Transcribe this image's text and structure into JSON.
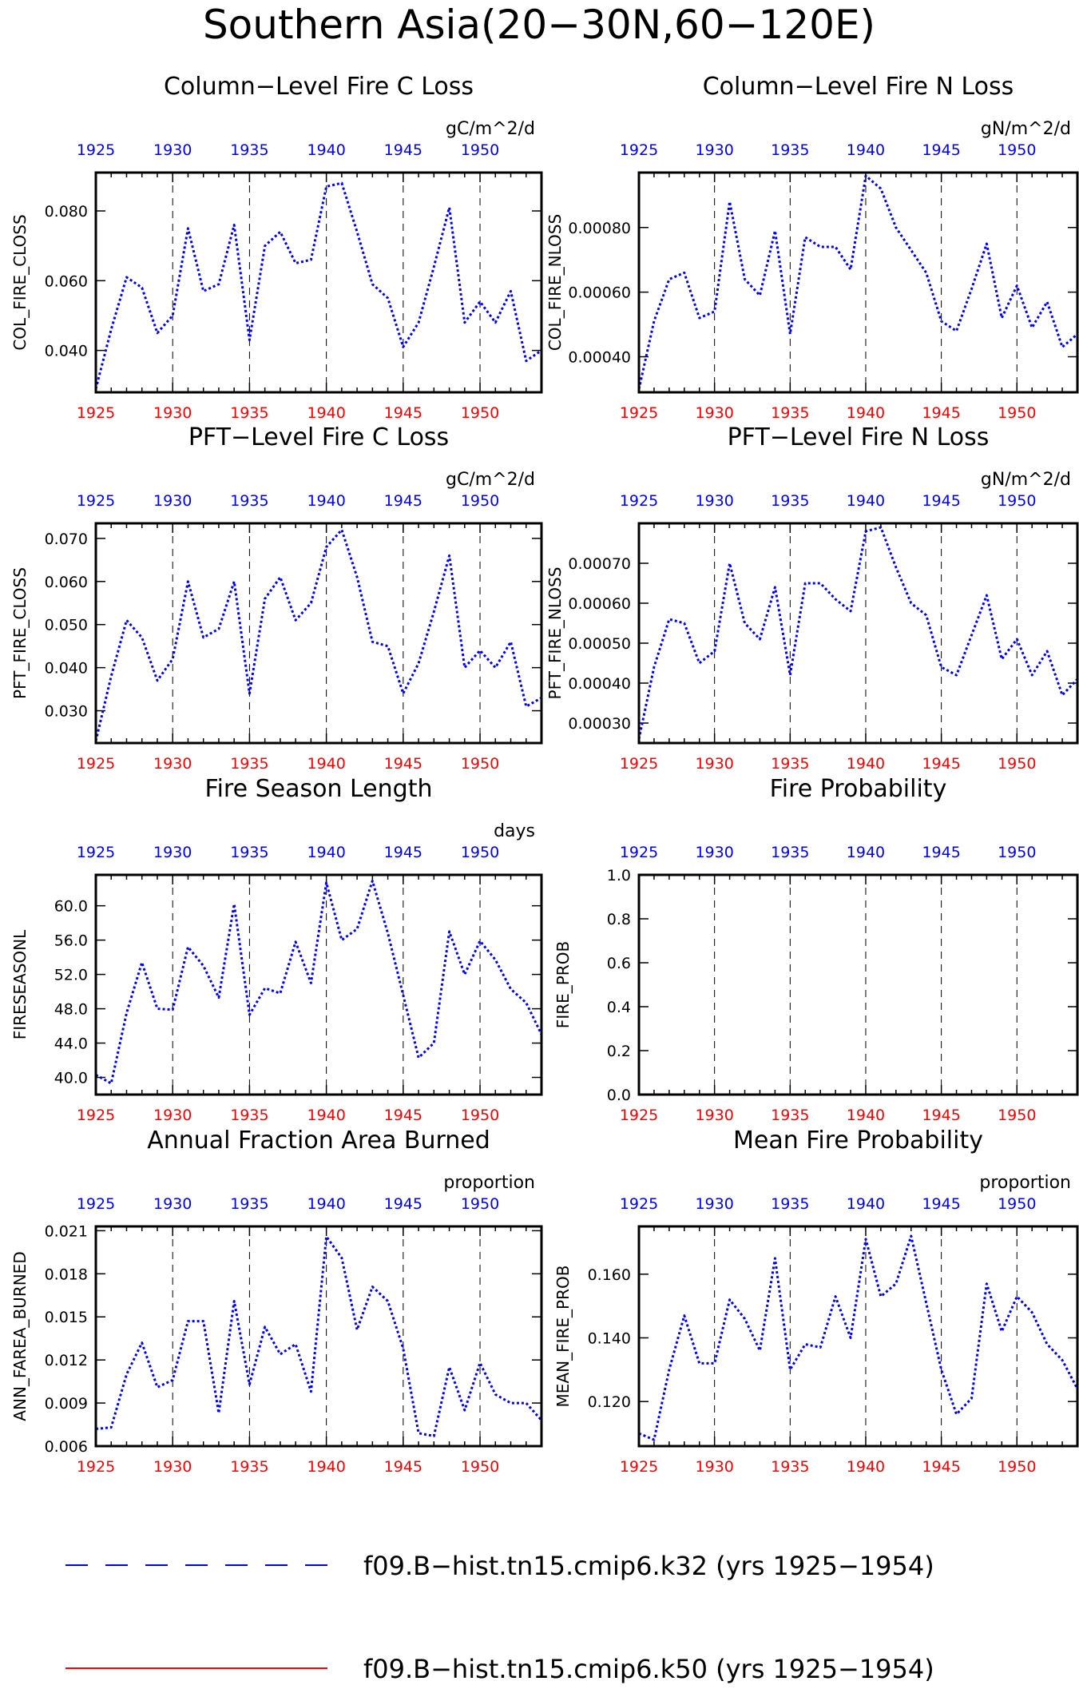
{
  "figure": {
    "title": "Southern Asia(20−30N,60−120E)",
    "legend": [
      {
        "label": "f09.B−hist.tn15.cmip6.k32 (yrs 1925−1954)",
        "color": "#0000ff",
        "style": "dashed"
      },
      {
        "label": "f09.B−hist.tn15.cmip6.k50 (yrs 1925−1954)",
        "color": "#ff0000",
        "style": "solid"
      }
    ],
    "colors": {
      "series": "#0000ff",
      "top_ticks": "#0000ff",
      "bottom_ticks": "#ff0000",
      "axes": "#000000"
    }
  },
  "chart_data": [
    {
      "type": "line",
      "title": "Column−Level Fire C Loss",
      "units": "gC/m^2/d",
      "ylabel": "COL_FIRE_CLOSS",
      "xlim": [
        1925,
        1954
      ],
      "ylim": [
        0.028,
        0.091
      ],
      "xticks": [
        "1925",
        "1930",
        "1935",
        "1940",
        "1945",
        "1950"
      ],
      "yticks": [
        "0.040",
        "0.060",
        "0.080"
      ],
      "x": [
        1925,
        1926,
        1927,
        1928,
        1929,
        1930,
        1931,
        1932,
        1933,
        1934,
        1935,
        1936,
        1937,
        1938,
        1939,
        1940,
        1941,
        1942,
        1943,
        1944,
        1945,
        1946,
        1947,
        1948,
        1949,
        1950,
        1951,
        1952,
        1953,
        1954
      ],
      "series": [
        {
          "values": [
            0.029,
            0.046,
            0.061,
            0.058,
            0.045,
            0.05,
            0.075,
            0.057,
            0.059,
            0.076,
            0.043,
            0.07,
            0.074,
            0.065,
            0.066,
            0.087,
            0.088,
            0.074,
            0.059,
            0.055,
            0.041,
            0.048,
            0.064,
            0.081,
            0.048,
            0.054,
            0.048,
            0.057,
            0.037,
            0.04
          ]
        }
      ]
    },
    {
      "type": "line",
      "title": "Column−Level Fire N Loss",
      "units": "gN/m^2/d",
      "ylabel": "COL_FIRE_NLOSS",
      "xlim": [
        1925,
        1954
      ],
      "ylim": [
        0.00029,
        0.00097
      ],
      "xticks": [
        "1925",
        "1930",
        "1935",
        "1940",
        "1945",
        "1950"
      ],
      "yticks": [
        "0.00040",
        "0.00060",
        "0.00080"
      ],
      "x": [
        1925,
        1926,
        1927,
        1928,
        1929,
        1930,
        1931,
        1932,
        1933,
        1934,
        1935,
        1936,
        1937,
        1938,
        1939,
        1940,
        1941,
        1942,
        1943,
        1944,
        1945,
        1946,
        1947,
        1948,
        1949,
        1950,
        1951,
        1952,
        1953,
        1954
      ],
      "series": [
        {
          "values": [
            0.0003,
            0.00051,
            0.00064,
            0.00066,
            0.00052,
            0.00054,
            0.00088,
            0.00064,
            0.00059,
            0.00079,
            0.00047,
            0.00077,
            0.00074,
            0.00074,
            0.00067,
            0.00096,
            0.00092,
            0.0008,
            0.00073,
            0.00066,
            0.00051,
            0.00048,
            0.00061,
            0.00075,
            0.00052,
            0.00062,
            0.00049,
            0.00057,
            0.00043,
            0.00047
          ]
        }
      ]
    },
    {
      "type": "line",
      "title": "PFT−Level Fire C Loss",
      "units": "gC/m^2/d",
      "ylabel": "PFT_FIRE_CLOSS",
      "xlim": [
        1925,
        1954
      ],
      "ylim": [
        0.0225,
        0.0735
      ],
      "xticks": [
        "1925",
        "1930",
        "1935",
        "1940",
        "1945",
        "1950"
      ],
      "yticks": [
        "0.030",
        "0.040",
        "0.050",
        "0.060",
        "0.070"
      ],
      "x": [
        1925,
        1926,
        1927,
        1928,
        1929,
        1930,
        1931,
        1932,
        1933,
        1934,
        1935,
        1936,
        1937,
        1938,
        1939,
        1940,
        1941,
        1942,
        1943,
        1944,
        1945,
        1946,
        1947,
        1948,
        1949,
        1950,
        1951,
        1952,
        1953,
        1954
      ],
      "series": [
        {
          "values": [
            0.023,
            0.038,
            0.051,
            0.047,
            0.037,
            0.042,
            0.06,
            0.047,
            0.049,
            0.06,
            0.034,
            0.056,
            0.061,
            0.051,
            0.055,
            0.068,
            0.072,
            0.061,
            0.046,
            0.045,
            0.034,
            0.041,
            0.053,
            0.066,
            0.04,
            0.044,
            0.04,
            0.046,
            0.031,
            0.033
          ]
        }
      ]
    },
    {
      "type": "line",
      "title": "PFT−Level Fire N Loss",
      "units": "gN/m^2/d",
      "ylabel": "PFT_FIRE_NLOSS",
      "xlim": [
        1925,
        1954
      ],
      "ylim": [
        0.00025,
        0.0008
      ],
      "xticks": [
        "1925",
        "1930",
        "1935",
        "1940",
        "1945",
        "1950"
      ],
      "yticks": [
        "0.00030",
        "0.00040",
        "0.00050",
        "0.00060",
        "0.00070"
      ],
      "x": [
        1925,
        1926,
        1927,
        1928,
        1929,
        1930,
        1931,
        1932,
        1933,
        1934,
        1935,
        1936,
        1937,
        1938,
        1939,
        1940,
        1941,
        1942,
        1943,
        1944,
        1945,
        1946,
        1947,
        1948,
        1949,
        1950,
        1951,
        1952,
        1953,
        1954
      ],
      "series": [
        {
          "values": [
            0.00026,
            0.00044,
            0.00056,
            0.00055,
            0.00045,
            0.00048,
            0.0007,
            0.00055,
            0.00051,
            0.00064,
            0.00042,
            0.00065,
            0.00065,
            0.00061,
            0.00058,
            0.00078,
            0.00079,
            0.00069,
            0.0006,
            0.00057,
            0.00044,
            0.00042,
            0.00052,
            0.00062,
            0.00046,
            0.00051,
            0.00042,
            0.00048,
            0.00037,
            0.00041
          ]
        }
      ]
    },
    {
      "type": "line",
      "title": "Fire Season Length",
      "units": "days",
      "ylabel": "FIRESEASONL",
      "xlim": [
        1925,
        1954
      ],
      "ylim": [
        38.0,
        63.6
      ],
      "xticks": [
        "1925",
        "1930",
        "1935",
        "1940",
        "1945",
        "1950"
      ],
      "yticks": [
        "40.0",
        "44.0",
        "48.0",
        "52.0",
        "56.0",
        "60.0"
      ],
      "x": [
        1925,
        1926,
        1927,
        1928,
        1929,
        1930,
        1931,
        1932,
        1933,
        1934,
        1935,
        1936,
        1937,
        1938,
        1939,
        1940,
        1941,
        1942,
        1943,
        1944,
        1945,
        1946,
        1947,
        1948,
        1949,
        1950,
        1951,
        1952,
        1953,
        1954
      ],
      "series": [
        {
          "values": [
            40.3,
            39.3,
            47.5,
            53.4,
            48.0,
            47.9,
            55.2,
            53.0,
            49.3,
            60.2,
            47.3,
            50.4,
            49.8,
            55.8,
            51.0,
            62.7,
            56.0,
            57.3,
            62.9,
            56.8,
            49.6,
            42.3,
            44.0,
            57.0,
            52.0,
            55.9,
            53.7,
            50.3,
            48.7,
            45.0
          ]
        }
      ]
    },
    {
      "type": "line",
      "title": "Fire Probability",
      "units": "",
      "ylabel": "FIRE_PROB",
      "xlim": [
        1925,
        1954
      ],
      "ylim": [
        0.0,
        1.0
      ],
      "xticks": [
        "1925",
        "1930",
        "1935",
        "1940",
        "1945",
        "1950"
      ],
      "yticks": [
        "0.0",
        "0.2",
        "0.4",
        "0.6",
        "0.8",
        "1.0"
      ],
      "x": [],
      "series": []
    },
    {
      "type": "line",
      "title": "Annual Fraction Area Burned",
      "units": "proportion",
      "ylabel": "ANN_FAREA_BURNED",
      "xlim": [
        1925,
        1954
      ],
      "ylim": [
        0.006,
        0.0213
      ],
      "xticks": [
        "1925",
        "1930",
        "1935",
        "1940",
        "1945",
        "1950"
      ],
      "yticks": [
        "0.006",
        "0.009",
        "0.012",
        "0.015",
        "0.018",
        "0.021"
      ],
      "x": [
        1925,
        1926,
        1927,
        1928,
        1929,
        1930,
        1931,
        1932,
        1933,
        1934,
        1935,
        1936,
        1937,
        1938,
        1939,
        1940,
        1941,
        1942,
        1943,
        1944,
        1945,
        1946,
        1947,
        1948,
        1949,
        1950,
        1951,
        1952,
        1953,
        1954
      ],
      "series": [
        {
          "values": [
            0.0072,
            0.0073,
            0.011,
            0.0132,
            0.0101,
            0.0106,
            0.0147,
            0.0147,
            0.0083,
            0.0161,
            0.0103,
            0.0143,
            0.0124,
            0.0131,
            0.0098,
            0.0206,
            0.0191,
            0.0141,
            0.0171,
            0.0161,
            0.0128,
            0.0069,
            0.0067,
            0.0115,
            0.0085,
            0.0118,
            0.0096,
            0.009,
            0.009,
            0.0078
          ]
        }
      ]
    },
    {
      "type": "line",
      "title": "Mean Fire Probability",
      "units": "proportion",
      "ylabel": "MEAN_FIRE_PROB",
      "xlim": [
        1925,
        1954
      ],
      "ylim": [
        0.106,
        0.175
      ],
      "xticks": [
        "1925",
        "1930",
        "1935",
        "1940",
        "1945",
        "1950"
      ],
      "yticks": [
        "0.120",
        "0.140",
        "0.160"
      ],
      "x": [
        1925,
        1926,
        1927,
        1928,
        1929,
        1930,
        1931,
        1932,
        1933,
        1934,
        1935,
        1936,
        1937,
        1938,
        1939,
        1940,
        1941,
        1942,
        1943,
        1944,
        1945,
        1946,
        1947,
        1948,
        1949,
        1950,
        1951,
        1952,
        1953,
        1954
      ],
      "series": [
        {
          "values": [
            0.11,
            0.108,
            0.13,
            0.147,
            0.132,
            0.132,
            0.152,
            0.146,
            0.136,
            0.165,
            0.13,
            0.138,
            0.137,
            0.153,
            0.14,
            0.171,
            0.153,
            0.157,
            0.172,
            0.151,
            0.13,
            0.116,
            0.121,
            0.157,
            0.142,
            0.153,
            0.148,
            0.138,
            0.133,
            0.124
          ]
        }
      ]
    }
  ]
}
